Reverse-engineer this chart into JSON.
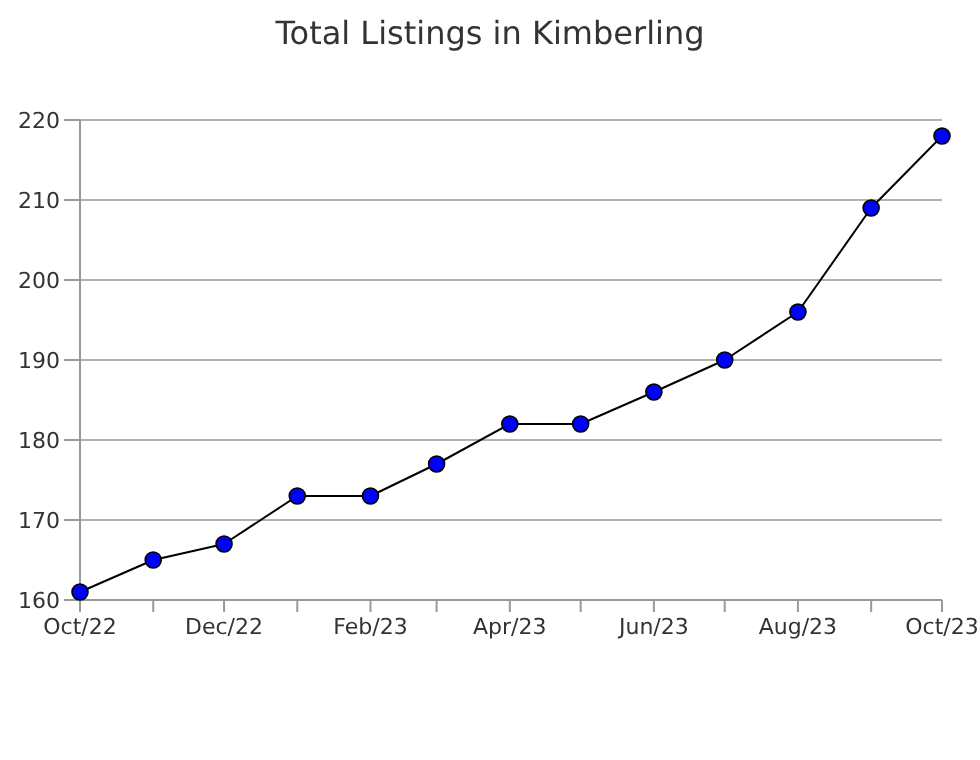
{
  "chart_data": {
    "type": "line",
    "title": "Total Listings in Kimberling",
    "x": [
      "2022-10",
      "2022-11",
      "2022-12",
      "2023-01",
      "2023-02",
      "2023-03",
      "2023-04",
      "2023-05",
      "2023-06",
      "2023-07",
      "2023-08",
      "2023-09",
      "2023-10"
    ],
    "series": [
      {
        "color": "#0000ff",
        "values": [
          161,
          165,
          167,
          173,
          173,
          177,
          182,
          182,
          186,
          190,
          196,
          209,
          218
        ]
      }
    ],
    "xlim": [
      "2022-10",
      "2023-10"
    ],
    "xticks": [
      {
        "value": "2022-10",
        "label": "Oct/22"
      },
      {
        "value": "2022-11",
        "label": null
      },
      {
        "value": "2022-12",
        "label": "Dec/22"
      },
      {
        "value": "2023-01",
        "label": null
      },
      {
        "value": "2023-02",
        "label": "Feb/23"
      },
      {
        "value": "2023-03",
        "label": null
      },
      {
        "value": "2023-04",
        "label": "Apr/23"
      },
      {
        "value": "2023-05",
        "label": null
      },
      {
        "value": "2023-06",
        "label": "Jun/23"
      },
      {
        "value": "2023-07",
        "label": null
      },
      {
        "value": "2023-08",
        "label": "Aug/23"
      },
      {
        "value": "2023-09",
        "label": null
      },
      {
        "value": "2023-10",
        "label": "Oct/23"
      }
    ],
    "ylim": [
      160,
      220
    ],
    "yticks": [
      160,
      170,
      180,
      190,
      200,
      210,
      220
    ],
    "grid": "y",
    "marker": "circle",
    "line_style": "solid"
  }
}
